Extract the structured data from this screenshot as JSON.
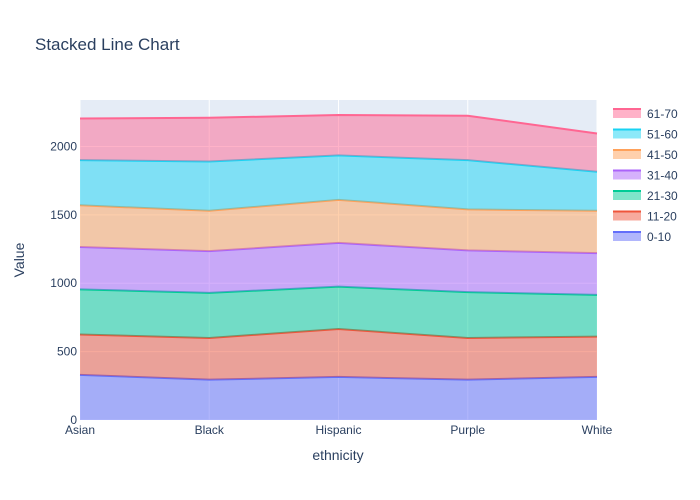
{
  "chart_data": {
    "type": "area",
    "title": "Stacked Line Chart",
    "xlabel": "ethnicity",
    "ylabel": "Value",
    "categories": [
      "Asian",
      "Black",
      "Hispanic",
      "Purple",
      "White"
    ],
    "ylim": [
      0,
      2340
    ],
    "yticks": [
      0,
      500,
      1000,
      1500,
      2000
    ],
    "ytick_labels": [
      "0",
      "500",
      "1000",
      "1500",
      "2000"
    ],
    "grid": true,
    "stacked": true,
    "legend": "right",
    "series": [
      {
        "name": "0-10",
        "color": "#636efa",
        "values": [
          330,
          295,
          315,
          295,
          315
        ]
      },
      {
        "name": "11-20",
        "color": "#ef553b",
        "values": [
          295,
          305,
          350,
          305,
          295
        ]
      },
      {
        "name": "21-30",
        "color": "#00cc96",
        "values": [
          330,
          330,
          310,
          335,
          305
        ]
      },
      {
        "name": "31-40",
        "color": "#ab63fa",
        "values": [
          310,
          305,
          320,
          305,
          305
        ]
      },
      {
        "name": "41-50",
        "color": "#ffa15a",
        "values": [
          305,
          295,
          315,
          300,
          310
        ]
      },
      {
        "name": "51-60",
        "color": "#19d3f3",
        "values": [
          330,
          360,
          325,
          360,
          285
        ]
      },
      {
        "name": "61-70",
        "color": "#ff6692",
        "values": [
          305,
          320,
          295,
          325,
          280
        ]
      }
    ]
  }
}
